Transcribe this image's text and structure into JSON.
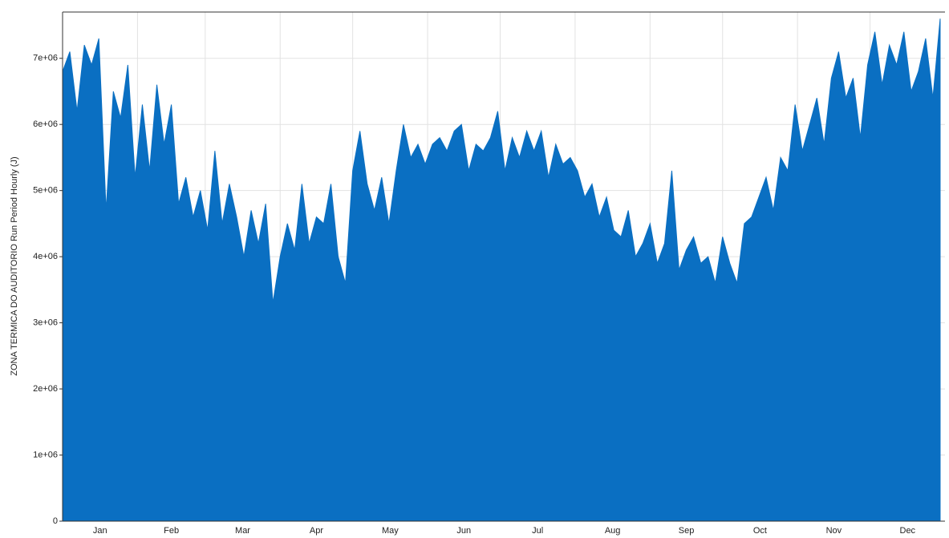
{
  "chart_data": {
    "type": "area",
    "y_label": "ZONA TERMICA DO AUDITORIO Run Period Hourly (J)",
    "color": "#0a6fc2",
    "x": [
      0,
      3,
      6,
      9,
      12,
      15,
      18,
      21,
      24,
      27,
      30,
      33,
      36,
      39,
      42,
      45,
      48,
      51,
      54,
      57,
      60,
      63,
      66,
      69,
      72,
      75,
      78,
      81,
      84,
      87,
      90,
      93,
      96,
      99,
      102,
      105,
      108,
      111,
      114,
      117,
      120,
      123,
      126,
      129,
      132,
      135,
      138,
      141,
      144,
      147,
      150,
      153,
      156,
      159,
      162,
      165,
      168,
      171,
      174,
      177,
      180,
      183,
      186,
      189,
      192,
      195,
      198,
      201,
      204,
      207,
      210,
      213,
      216,
      219,
      222,
      225,
      228,
      231,
      234,
      237,
      240,
      243,
      246,
      249,
      252,
      255,
      258,
      261,
      264,
      267,
      270,
      273,
      276,
      279,
      282,
      285,
      288,
      291,
      294,
      297,
      300,
      303,
      306,
      309,
      312,
      315,
      318,
      321,
      324,
      327,
      330,
      333,
      336,
      339,
      342,
      345,
      348,
      351,
      354,
      357,
      360,
      363
    ],
    "values": [
      6800000.0,
      7100000.0,
      6200000.0,
      7200000.0,
      6900000.0,
      7300000.0,
      4700000.0,
      6500000.0,
      6100000.0,
      6900000.0,
      5200000.0,
      6300000.0,
      5300000.0,
      6600000.0,
      5700000.0,
      6300000.0,
      4800000.0,
      5200000.0,
      4600000.0,
      5000000.0,
      4400000.0,
      5600000.0,
      4500000.0,
      5100000.0,
      4600000.0,
      4000000.0,
      4700000.0,
      4200000.0,
      4800000.0,
      3300000.0,
      4000000.0,
      4500000.0,
      4100000.0,
      5100000.0,
      4200000.0,
      4600000.0,
      4500000.0,
      5100000.0,
      4000000.0,
      3600000.0,
      5300000.0,
      5900000.0,
      5100000.0,
      4700000.0,
      5200000.0,
      4500000.0,
      5300000.0,
      6000000.0,
      5500000.0,
      5700000.0,
      5400000.0,
      5700000.0,
      5800000.0,
      5600000.0,
      5900000.0,
      6000000.0,
      5300000.0,
      5700000.0,
      5600000.0,
      5800000.0,
      6200000.0,
      5300000.0,
      5800000.0,
      5500000.0,
      5900000.0,
      5600000.0,
      5900000.0,
      5200000.0,
      5700000.0,
      5400000.0,
      5500000.0,
      5300000.0,
      4900000.0,
      5100000.0,
      4600000.0,
      4900000.0,
      4400000.0,
      4300000.0,
      4700000.0,
      4000000.0,
      4200000.0,
      4500000.0,
      3900000.0,
      4200000.0,
      5300000.0,
      3800000.0,
      4100000.0,
      4300000.0,
      3900000.0,
      4000000.0,
      3600000.0,
      4300000.0,
      3900000.0,
      3600000.0,
      4500000.0,
      4600000.0,
      4900000.0,
      5200000.0,
      4700000.0,
      5500000.0,
      5300000.0,
      6300000.0,
      5600000.0,
      6000000.0,
      6400000.0,
      5700000.0,
      6700000.0,
      7100000.0,
      6400000.0,
      6700000.0,
      5800000.0,
      6900000.0,
      7400000.0,
      6600000.0,
      7200000.0,
      6900000.0,
      7400000.0,
      6500000.0,
      6800000.0,
      7300000.0,
      6400000.0,
      7600000.0
    ],
    "xlim": [
      0,
      365
    ],
    "xticks": [
      {
        "value": 15.5,
        "label": "Jan"
      },
      {
        "value": 45,
        "label": "Feb"
      },
      {
        "value": 74.5,
        "label": "Mar"
      },
      {
        "value": 105,
        "label": "Apr"
      },
      {
        "value": 135.5,
        "label": "May"
      },
      {
        "value": 166,
        "label": "Jun"
      },
      {
        "value": 196.5,
        "label": "Jul"
      },
      {
        "value": 227.5,
        "label": "Aug"
      },
      {
        "value": 258,
        "label": "Sep"
      },
      {
        "value": 288.5,
        "label": "Oct"
      },
      {
        "value": 319,
        "label": "Nov"
      },
      {
        "value": 349.5,
        "label": "Dec"
      }
    ],
    "xgrid": [
      31,
      59,
      90,
      120,
      151,
      181,
      212,
      243,
      273,
      304,
      334
    ],
    "ylim": [
      0,
      7700000.0
    ],
    "yticks": [
      0,
      {
        "value": 1000000.0,
        "label": "1e+06"
      },
      {
        "value": 2000000.0,
        "label": "2e+06"
      },
      {
        "value": 3000000.0,
        "label": "3e+06"
      },
      {
        "value": 4000000.0,
        "label": "4e+06"
      },
      {
        "value": 5000000.0,
        "label": "5e+06"
      },
      {
        "value": 6000000.0,
        "label": "6e+06"
      },
      {
        "value": 7000000.0,
        "label": "7e+06"
      }
    ],
    "grid": true
  }
}
